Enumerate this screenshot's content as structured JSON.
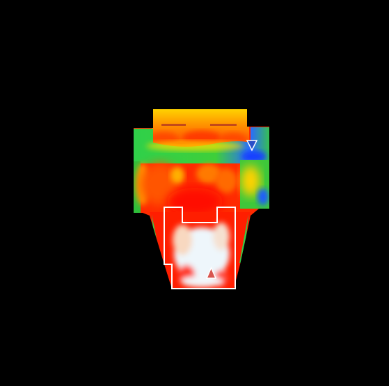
{
  "image": {
    "kind": "thermal-camera-frame",
    "background": "#000000",
    "palette": {
      "white": "#f4f8fb",
      "hot": "#ff1a00",
      "warm": "#ff7a00",
      "mid": "#ffd400",
      "cool": "#3cc83c",
      "cold": "#1a3cff",
      "outline": "#ffffff"
    },
    "markers": [
      {
        "name": "min-temperature-marker",
        "color": "#2a4fc9",
        "direction": "down"
      },
      {
        "name": "max-temperature-marker",
        "color": "#d8554f",
        "direction": "up"
      }
    ]
  }
}
